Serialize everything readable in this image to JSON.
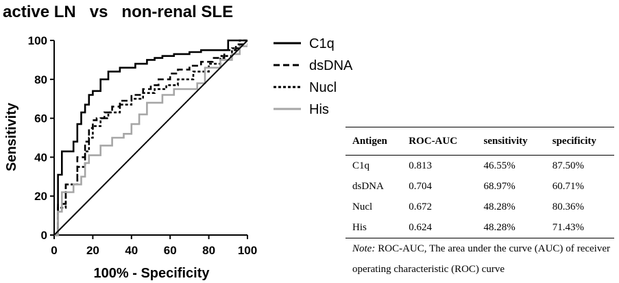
{
  "chart_data": {
    "type": "line",
    "title": "active LN   vs   non-renal SLE",
    "xlabel": "100% - Specificity",
    "ylabel": "Sensitivity",
    "xlim": [
      0,
      100
    ],
    "ylim": [
      0,
      100
    ],
    "xticks": [
      "0",
      "20",
      "40",
      "60",
      "80",
      "100"
    ],
    "yticks": [
      "0",
      "20",
      "40",
      "60",
      "80",
      "100"
    ],
    "grid": false,
    "legend_position": "right",
    "series": [
      {
        "name": "C1q",
        "style": "solid",
        "color": "#000000",
        "x": [
          0,
          2,
          2,
          4,
          4,
          10,
          10,
          12,
          12,
          14,
          14,
          16,
          16,
          18,
          18,
          20,
          20,
          24,
          24,
          28,
          28,
          34,
          34,
          42,
          42,
          48,
          48,
          52,
          52,
          56,
          56,
          62,
          62,
          70,
          70,
          76,
          76,
          90,
          90,
          100
        ],
        "y": [
          0,
          0,
          31,
          31,
          43,
          43,
          48,
          48,
          57,
          57,
          63,
          63,
          67,
          67,
          72,
          72,
          74,
          74,
          80,
          80,
          84,
          84,
          86,
          86,
          88,
          88,
          90,
          90,
          91,
          91,
          92,
          92,
          93,
          93,
          94,
          94,
          95,
          95,
          100,
          100
        ]
      },
      {
        "name": "dsDNA",
        "style": "dashed",
        "color": "#000000",
        "x": [
          0,
          2,
          2,
          6,
          6,
          12,
          12,
          16,
          16,
          18,
          18,
          20,
          20,
          22,
          22,
          26,
          26,
          30,
          30,
          34,
          34,
          40,
          40,
          46,
          46,
          50,
          50,
          54,
          54,
          60,
          60,
          64,
          64,
          70,
          70,
          76,
          76,
          82,
          82,
          88,
          88,
          94,
          94,
          100
        ],
        "y": [
          0,
          0,
          16,
          16,
          26,
          26,
          40,
          40,
          48,
          48,
          55,
          55,
          59,
          59,
          60,
          60,
          63,
          63,
          66,
          66,
          69,
          69,
          72,
          72,
          75,
          75,
          77,
          77,
          80,
          80,
          83,
          83,
          85,
          85,
          87,
          87,
          89,
          89,
          91,
          91,
          95,
          95,
          98,
          98
        ]
      },
      {
        "name": "Nucl",
        "style": "dotted",
        "color": "#000000",
        "x": [
          0,
          2,
          2,
          6,
          6,
          12,
          12,
          16,
          16,
          18,
          18,
          20,
          20,
          24,
          24,
          28,
          28,
          34,
          34,
          40,
          40,
          46,
          46,
          52,
          52,
          58,
          58,
          64,
          64,
          72,
          72,
          80,
          80,
          86,
          86,
          92,
          92,
          96,
          96,
          100
        ],
        "y": [
          0,
          0,
          14,
          14,
          26,
          26,
          35,
          35,
          43,
          43,
          50,
          50,
          56,
          56,
          60,
          60,
          63,
          63,
          67,
          67,
          70,
          70,
          73,
          73,
          75,
          75,
          77,
          77,
          80,
          80,
          84,
          84,
          88,
          88,
          92,
          92,
          96,
          96,
          100,
          100
        ]
      },
      {
        "name": "His",
        "style": "solid",
        "color": "#a6a6a6",
        "x": [
          0,
          2,
          2,
          4,
          4,
          10,
          10,
          14,
          14,
          16,
          16,
          18,
          18,
          24,
          24,
          30,
          30,
          36,
          36,
          40,
          40,
          44,
          44,
          48,
          48,
          56,
          56,
          62,
          62,
          74,
          74,
          78,
          78,
          86,
          86,
          92,
          92,
          96,
          96,
          100
        ],
        "y": [
          0,
          0,
          12,
          12,
          22,
          22,
          26,
          26,
          30,
          30,
          37,
          37,
          41,
          41,
          46,
          46,
          50,
          50,
          52,
          52,
          57,
          57,
          62,
          62,
          68,
          68,
          72,
          72,
          75,
          75,
          78,
          78,
          86,
          86,
          90,
          90,
          93,
          93,
          97,
          97
        ]
      },
      {
        "name": "",
        "style": "solid",
        "color": "#000000",
        "x": [
          0,
          100
        ],
        "y": [
          0,
          100
        ]
      }
    ]
  },
  "table": {
    "headers": [
      "Antigen",
      "ROC-AUC",
      "sensitivity",
      "specificity"
    ],
    "rows": [
      [
        "C1q",
        "0.813",
        "46.55%",
        "87.50%"
      ],
      [
        "dsDNA",
        "0.704",
        "68.97%",
        "60.71%"
      ],
      [
        "Nucl",
        "0.672",
        "48.28%",
        "80.36%"
      ],
      [
        "His",
        "0.624",
        "48.28%",
        "71.43%"
      ]
    ],
    "note_label": "Note:",
    "note_text": " ROC-AUC, The area under the curve (AUC) of receiver operating characteristic (ROC) curve"
  }
}
